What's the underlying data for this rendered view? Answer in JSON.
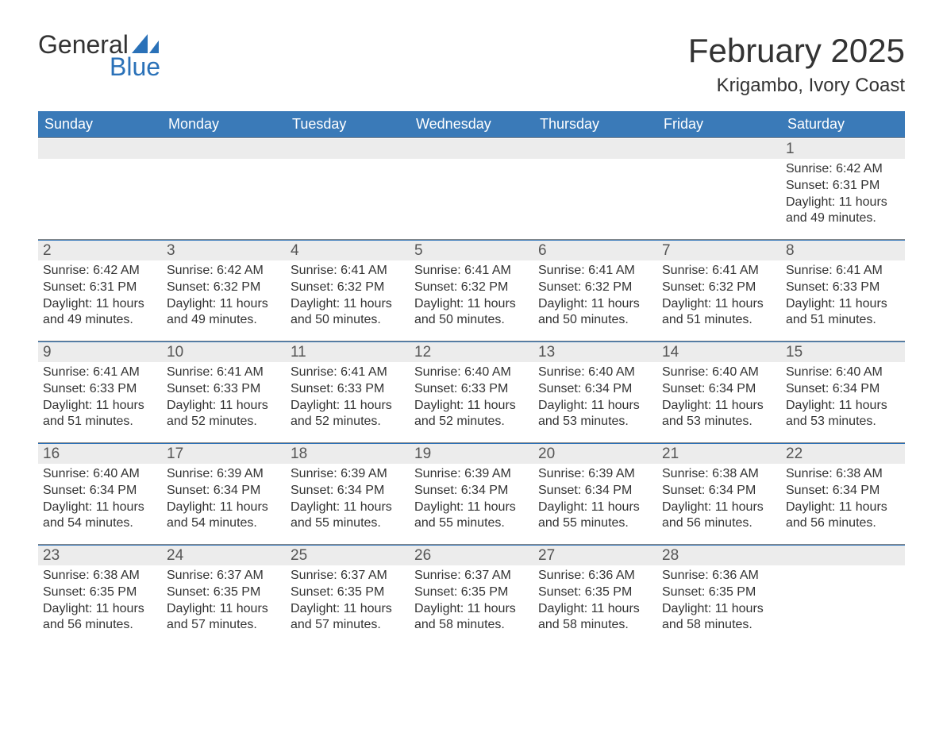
{
  "logo": {
    "word1": "General",
    "word2": "Blue",
    "sail_color": "#2a71b8"
  },
  "title": "February 2025",
  "location": "Krigambo, Ivory Coast",
  "colors": {
    "header_bg": "#3a7ab8",
    "accent": "#2a71b8",
    "daynum_bg": "#ececec",
    "text": "#333333",
    "background": "#ffffff"
  },
  "typography": {
    "title_fontsize": 42,
    "location_fontsize": 24,
    "dow_fontsize": 18,
    "daynum_fontsize": 19,
    "info_fontsize": 16
  },
  "days_of_week": [
    "Sunday",
    "Monday",
    "Tuesday",
    "Wednesday",
    "Thursday",
    "Friday",
    "Saturday"
  ],
  "weeks": [
    [
      null,
      null,
      null,
      null,
      null,
      null,
      {
        "n": "1",
        "sunrise": "Sunrise: 6:42 AM",
        "sunset": "Sunset: 6:31 PM",
        "daylight": "Daylight: 11 hours and 49 minutes."
      }
    ],
    [
      {
        "n": "2",
        "sunrise": "Sunrise: 6:42 AM",
        "sunset": "Sunset: 6:31 PM",
        "daylight": "Daylight: 11 hours and 49 minutes."
      },
      {
        "n": "3",
        "sunrise": "Sunrise: 6:42 AM",
        "sunset": "Sunset: 6:32 PM",
        "daylight": "Daylight: 11 hours and 49 minutes."
      },
      {
        "n": "4",
        "sunrise": "Sunrise: 6:41 AM",
        "sunset": "Sunset: 6:32 PM",
        "daylight": "Daylight: 11 hours and 50 minutes."
      },
      {
        "n": "5",
        "sunrise": "Sunrise: 6:41 AM",
        "sunset": "Sunset: 6:32 PM",
        "daylight": "Daylight: 11 hours and 50 minutes."
      },
      {
        "n": "6",
        "sunrise": "Sunrise: 6:41 AM",
        "sunset": "Sunset: 6:32 PM",
        "daylight": "Daylight: 11 hours and 50 minutes."
      },
      {
        "n": "7",
        "sunrise": "Sunrise: 6:41 AM",
        "sunset": "Sunset: 6:32 PM",
        "daylight": "Daylight: 11 hours and 51 minutes."
      },
      {
        "n": "8",
        "sunrise": "Sunrise: 6:41 AM",
        "sunset": "Sunset: 6:33 PM",
        "daylight": "Daylight: 11 hours and 51 minutes."
      }
    ],
    [
      {
        "n": "9",
        "sunrise": "Sunrise: 6:41 AM",
        "sunset": "Sunset: 6:33 PM",
        "daylight": "Daylight: 11 hours and 51 minutes."
      },
      {
        "n": "10",
        "sunrise": "Sunrise: 6:41 AM",
        "sunset": "Sunset: 6:33 PM",
        "daylight": "Daylight: 11 hours and 52 minutes."
      },
      {
        "n": "11",
        "sunrise": "Sunrise: 6:41 AM",
        "sunset": "Sunset: 6:33 PM",
        "daylight": "Daylight: 11 hours and 52 minutes."
      },
      {
        "n": "12",
        "sunrise": "Sunrise: 6:40 AM",
        "sunset": "Sunset: 6:33 PM",
        "daylight": "Daylight: 11 hours and 52 minutes."
      },
      {
        "n": "13",
        "sunrise": "Sunrise: 6:40 AM",
        "sunset": "Sunset: 6:34 PM",
        "daylight": "Daylight: 11 hours and 53 minutes."
      },
      {
        "n": "14",
        "sunrise": "Sunrise: 6:40 AM",
        "sunset": "Sunset: 6:34 PM",
        "daylight": "Daylight: 11 hours and 53 minutes."
      },
      {
        "n": "15",
        "sunrise": "Sunrise: 6:40 AM",
        "sunset": "Sunset: 6:34 PM",
        "daylight": "Daylight: 11 hours and 53 minutes."
      }
    ],
    [
      {
        "n": "16",
        "sunrise": "Sunrise: 6:40 AM",
        "sunset": "Sunset: 6:34 PM",
        "daylight": "Daylight: 11 hours and 54 minutes."
      },
      {
        "n": "17",
        "sunrise": "Sunrise: 6:39 AM",
        "sunset": "Sunset: 6:34 PM",
        "daylight": "Daylight: 11 hours and 54 minutes."
      },
      {
        "n": "18",
        "sunrise": "Sunrise: 6:39 AM",
        "sunset": "Sunset: 6:34 PM",
        "daylight": "Daylight: 11 hours and 55 minutes."
      },
      {
        "n": "19",
        "sunrise": "Sunrise: 6:39 AM",
        "sunset": "Sunset: 6:34 PM",
        "daylight": "Daylight: 11 hours and 55 minutes."
      },
      {
        "n": "20",
        "sunrise": "Sunrise: 6:39 AM",
        "sunset": "Sunset: 6:34 PM",
        "daylight": "Daylight: 11 hours and 55 minutes."
      },
      {
        "n": "21",
        "sunrise": "Sunrise: 6:38 AM",
        "sunset": "Sunset: 6:34 PM",
        "daylight": "Daylight: 11 hours and 56 minutes."
      },
      {
        "n": "22",
        "sunrise": "Sunrise: 6:38 AM",
        "sunset": "Sunset: 6:34 PM",
        "daylight": "Daylight: 11 hours and 56 minutes."
      }
    ],
    [
      {
        "n": "23",
        "sunrise": "Sunrise: 6:38 AM",
        "sunset": "Sunset: 6:35 PM",
        "daylight": "Daylight: 11 hours and 56 minutes."
      },
      {
        "n": "24",
        "sunrise": "Sunrise: 6:37 AM",
        "sunset": "Sunset: 6:35 PM",
        "daylight": "Daylight: 11 hours and 57 minutes."
      },
      {
        "n": "25",
        "sunrise": "Sunrise: 6:37 AM",
        "sunset": "Sunset: 6:35 PM",
        "daylight": "Daylight: 11 hours and 57 minutes."
      },
      {
        "n": "26",
        "sunrise": "Sunrise: 6:37 AM",
        "sunset": "Sunset: 6:35 PM",
        "daylight": "Daylight: 11 hours and 58 minutes."
      },
      {
        "n": "27",
        "sunrise": "Sunrise: 6:36 AM",
        "sunset": "Sunset: 6:35 PM",
        "daylight": "Daylight: 11 hours and 58 minutes."
      },
      {
        "n": "28",
        "sunrise": "Sunrise: 6:36 AM",
        "sunset": "Sunset: 6:35 PM",
        "daylight": "Daylight: 11 hours and 58 minutes."
      },
      null
    ]
  ]
}
